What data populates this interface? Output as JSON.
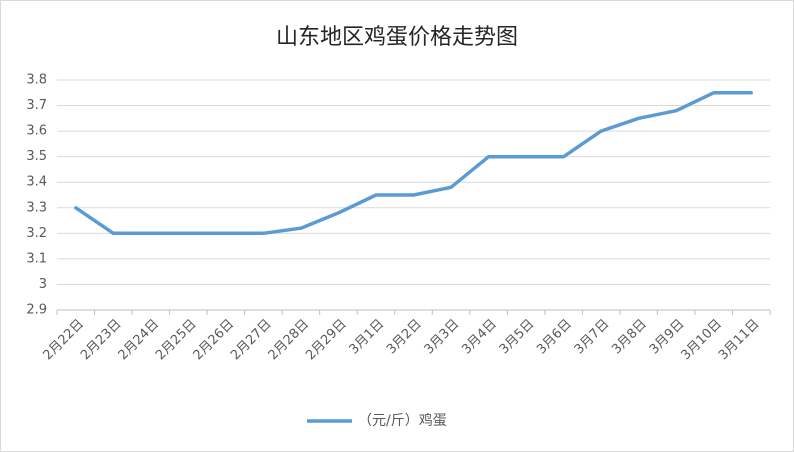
{
  "chart_data": {
    "type": "line",
    "title": "山东地区鸡蛋价格走势图",
    "categories": [
      "2月22日",
      "2月23日",
      "2月24日",
      "2月25日",
      "2月26日",
      "2月27日",
      "2月28日",
      "2月29日",
      "3月1日",
      "3月2日",
      "3月3日",
      "3月4日",
      "3月5日",
      "3月6日",
      "3月7日",
      "3月8日",
      "3月9日",
      "3月10日",
      "3月11日"
    ],
    "series": [
      {
        "name": "（元/斤）鸡蛋",
        "color": "#5b9bd5",
        "values": [
          3.3,
          3.2,
          3.2,
          3.2,
          3.2,
          3.2,
          3.22,
          3.28,
          3.35,
          3.35,
          3.38,
          3.5,
          3.5,
          3.5,
          3.6,
          3.65,
          3.68,
          3.75,
          3.75
        ]
      }
    ],
    "ylim": [
      2.9,
      3.8
    ],
    "yticks": [
      2.9,
      3,
      3.1,
      3.2,
      3.3,
      3.4,
      3.5,
      3.6,
      3.7,
      3.8
    ],
    "grid": true,
    "legend": "bottom"
  }
}
